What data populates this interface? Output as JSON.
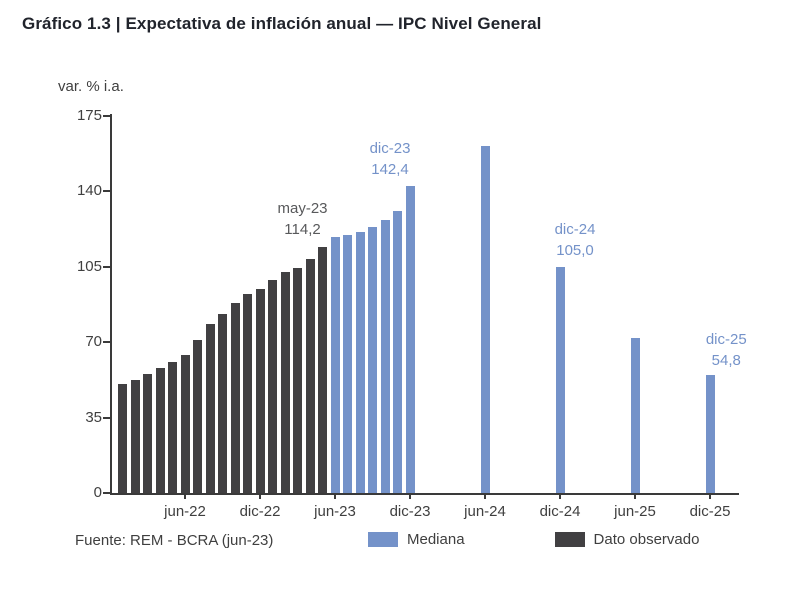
{
  "title": "Gráfico 1.3 | Expectativa de inflación anual — IPC Nivel General",
  "source": "Fuente: REM - BCRA (jun-23)",
  "legend": [
    {
      "label": "Mediana",
      "color": "#7492c9"
    },
    {
      "label": "Dato observado",
      "color": "#414042"
    }
  ],
  "chart_data": {
    "type": "bar",
    "title": "Expectativa de inflación anual — IPC Nivel General",
    "xlabel": "",
    "ylabel": "var. % i.a.",
    "ylim": [
      0,
      175
    ],
    "yticks": [
      0,
      35,
      70,
      105,
      140,
      175
    ],
    "grid": false,
    "legend_position": "bottom",
    "xticks": [
      "jun-22",
      "dic-22",
      "jun-23",
      "dic-23",
      "jun-24",
      "dic-24",
      "jun-25",
      "dic-25"
    ],
    "xtick_positions": [
      5,
      11,
      17,
      23,
      29,
      35,
      41,
      47
    ],
    "x_origin_month": "ene-22",
    "series": [
      {
        "key": "observado",
        "name": "Dato observado",
        "color": "#414042",
        "points": [
          {
            "x": 0,
            "month": "ene-22",
            "value": 50.7
          },
          {
            "x": 1,
            "month": "feb-22",
            "value": 52.3
          },
          {
            "x": 2,
            "month": "mar-22",
            "value": 55.1
          },
          {
            "x": 3,
            "month": "abr-22",
            "value": 58.0
          },
          {
            "x": 4,
            "month": "may-22",
            "value": 60.7
          },
          {
            "x": 5,
            "month": "jun-22",
            "value": 64.0
          },
          {
            "x": 6,
            "month": "jul-22",
            "value": 71.0
          },
          {
            "x": 7,
            "month": "ago-22",
            "value": 78.5
          },
          {
            "x": 8,
            "month": "sep-22",
            "value": 83.0
          },
          {
            "x": 9,
            "month": "oct-22",
            "value": 88.0
          },
          {
            "x": 10,
            "month": "nov-22",
            "value": 92.4
          },
          {
            "x": 11,
            "month": "dic-22",
            "value": 94.8
          },
          {
            "x": 12,
            "month": "ene-23",
            "value": 98.8
          },
          {
            "x": 13,
            "month": "feb-23",
            "value": 102.5
          },
          {
            "x": 14,
            "month": "mar-23",
            "value": 104.3
          },
          {
            "x": 15,
            "month": "abr-23",
            "value": 108.8
          },
          {
            "x": 16,
            "month": "may-23",
            "value": 114.2
          }
        ]
      },
      {
        "key": "mediana",
        "name": "Mediana",
        "color": "#7492c9",
        "points": [
          {
            "x": 17,
            "month": "jun-23",
            "value": 119.0
          },
          {
            "x": 18,
            "month": "jul-23",
            "value": 119.8
          },
          {
            "x": 19,
            "month": "ago-23",
            "value": 121.0
          },
          {
            "x": 20,
            "month": "sep-23",
            "value": 123.5
          },
          {
            "x": 21,
            "month": "oct-23",
            "value": 126.5
          },
          {
            "x": 22,
            "month": "nov-23",
            "value": 131.0
          },
          {
            "x": 23,
            "month": "dic-23",
            "value": 142.4
          },
          {
            "x": 29,
            "month": "jun-24",
            "value": 161.0
          },
          {
            "x": 35,
            "month": "dic-24",
            "value": 105.0
          },
          {
            "x": 41,
            "month": "jun-25",
            "value": 72.0
          },
          {
            "x": 47,
            "month": "dic-25",
            "value": 54.8
          }
        ]
      }
    ],
    "annotations": [
      {
        "lines": [
          "may-23",
          "114,2"
        ],
        "color": "#58595b",
        "x": 14.4,
        "y": 137
      },
      {
        "lines": [
          "dic-23",
          "142,4"
        ],
        "color": "#7492c9",
        "x": 21.4,
        "y": 165
      },
      {
        "lines": [
          "dic-24",
          "105,0"
        ],
        "color": "#7492c9",
        "x": 36.2,
        "y": 127
      },
      {
        "lines": [
          "dic-25",
          "54,8"
        ],
        "color": "#7492c9",
        "x": 48.3,
        "y": 76
      }
    ]
  }
}
